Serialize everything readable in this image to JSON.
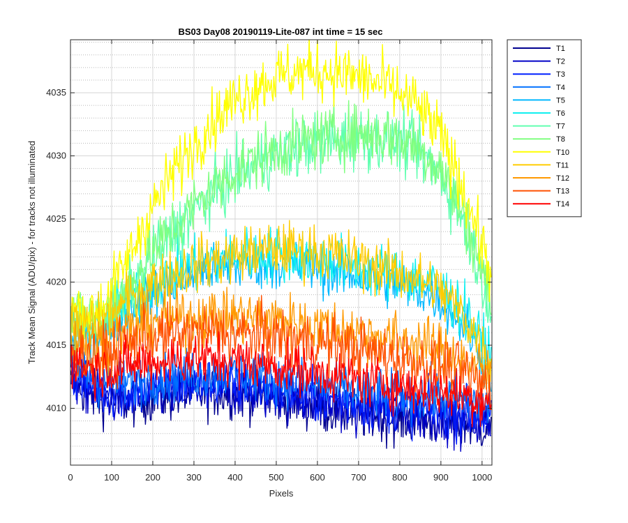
{
  "chart_data": {
    "type": "line",
    "title": "BS03 Day08 20190119-Lite-087 int time = 15 sec",
    "xlabel": "Pixels",
    "ylabel": "Track Mean Signal (ADU/pix) - for tracks not illuminated",
    "xlim": [
      0,
      1024
    ],
    "ylim": [
      4005.5,
      4039.2
    ],
    "x_ticks": [
      0,
      100,
      200,
      300,
      400,
      500,
      600,
      700,
      800,
      900,
      1000
    ],
    "y_ticks": [
      4010,
      4015,
      4020,
      4025,
      4030,
      4035
    ],
    "grid": true,
    "minor_grid": true,
    "legend_position": "outside-right",
    "x_samples": [
      0,
      64,
      128,
      192,
      256,
      320,
      384,
      448,
      512,
      576,
      640,
      704,
      768,
      832,
      896,
      960,
      1023
    ],
    "series": [
      {
        "name": "T1",
        "color": "#00008F",
        "noise": 1.0,
        "values": [
          4012,
          4010.8,
          4010.5,
          4010.8,
          4011,
          4011.2,
          4011.2,
          4011,
          4010.8,
          4010.3,
          4009.8,
          4009.5,
          4009.3,
          4009.1,
          4008.9,
          4008.7,
          4008.5
        ]
      },
      {
        "name": "T2",
        "color": "#0000C8",
        "noise": 1.0,
        "values": [
          4012.5,
          4011,
          4010.8,
          4011,
          4011.3,
          4011.5,
          4011.5,
          4011.3,
          4011,
          4010.6,
          4010.2,
          4009.9,
          4009.7,
          4009.5,
          4009.3,
          4009,
          4008.8
        ]
      },
      {
        "name": "T3",
        "color": "#0020FF",
        "noise": 1.0,
        "values": [
          4012.8,
          4011.5,
          4011.2,
          4011.5,
          4011.8,
          4012,
          4012,
          4011.8,
          4011.5,
          4011,
          4010.7,
          4010.4,
          4010.2,
          4010,
          4009.8,
          4009.6,
          4009.3
        ]
      },
      {
        "name": "T4",
        "color": "#0070FF",
        "noise": 1.0,
        "values": [
          4013.5,
          4012.2,
          4012,
          4012.3,
          4012.6,
          4012.8,
          4012.8,
          4012.6,
          4012.3,
          4012,
          4011.6,
          4011.3,
          4011.1,
          4011,
          4010.9,
          4010.7,
          4010.2
        ]
      },
      {
        "name": "T5",
        "color": "#00B8FF",
        "noise": 1.0,
        "values": [
          4015.5,
          4015.8,
          4017.5,
          4019,
          4020,
          4020.8,
          4021.2,
          4021.4,
          4021.4,
          4021.2,
          4020.8,
          4020.4,
          4020,
          4019.5,
          4018.7,
          4016.5,
          4013
        ]
      },
      {
        "name": "T6",
        "color": "#10F0F0",
        "noise": 1.1,
        "values": [
          4016.5,
          4016.8,
          4018.2,
          4019.8,
          4020.8,
          4021.6,
          4022,
          4022.2,
          4022.2,
          4022,
          4021.6,
          4021.2,
          4020.8,
          4020.3,
          4019.6,
          4017.5,
          4014
        ]
      },
      {
        "name": "T7",
        "color": "#60FFB0",
        "noise": 1.2,
        "values": [
          4017,
          4016.5,
          4018.5,
          4021.5,
          4024,
          4026.2,
          4028,
          4029.3,
          4030.2,
          4030.8,
          4031.2,
          4031.4,
          4031.3,
          4030.6,
          4028.8,
          4024.5,
          4018
        ]
      },
      {
        "name": "T8",
        "color": "#80FF80",
        "noise": 1.2,
        "values": [
          4017.5,
          4017,
          4019,
          4022,
          4024.5,
          4026.7,
          4028.4,
          4029.7,
          4030.6,
          4031.2,
          4031.6,
          4031.8,
          4031.7,
          4031,
          4029.2,
          4025,
          4018.5
        ]
      },
      {
        "name": "T10",
        "color": "#FFFF00",
        "noise": 1.2,
        "values": [
          4017.8,
          4017.5,
          4021,
          4025.5,
          4029,
          4031.8,
          4034,
          4035.5,
          4036.4,
          4036.8,
          4036.7,
          4036.2,
          4035.5,
          4034.3,
          4031.8,
          4027,
          4020.5
        ]
      },
      {
        "name": "T11",
        "color": "#FFCC00",
        "noise": 1.1,
        "values": [
          4016.5,
          4016.6,
          4018.2,
          4019.8,
          4020.8,
          4021.5,
          4022,
          4022.4,
          4022.6,
          4022.5,
          4022.2,
          4021.6,
          4021,
          4020.4,
          4019.4,
          4017.2,
          4013.5
        ]
      },
      {
        "name": "T12",
        "color": "#FF9900",
        "noise": 1.1,
        "values": [
          4015.5,
          4015,
          4016,
          4016.8,
          4017.2,
          4017.3,
          4017.3,
          4017.2,
          4017,
          4016.7,
          4016.4,
          4016,
          4015.6,
          4015.2,
          4014.7,
          4013.8,
          4012.5
        ]
      },
      {
        "name": "T13",
        "color": "#FF5000",
        "noise": 1.2,
        "values": [
          4014.5,
          4014,
          4014.8,
          4015.5,
          4015.8,
          4016,
          4016,
          4015.8,
          4015.6,
          4015.3,
          4015,
          4014.6,
          4014.2,
          4013.8,
          4013.3,
          4012.7,
          4011.5
        ]
      },
      {
        "name": "T14",
        "color": "#FF0000",
        "noise": 1.0,
        "values": [
          4013.8,
          4013,
          4013.3,
          4013.6,
          4013.8,
          4013.9,
          4013.8,
          4013.6,
          4013.3,
          4013,
          4012.6,
          4012.2,
          4011.9,
          4011.6,
          4011.3,
          4011,
          4010.5
        ]
      }
    ]
  }
}
